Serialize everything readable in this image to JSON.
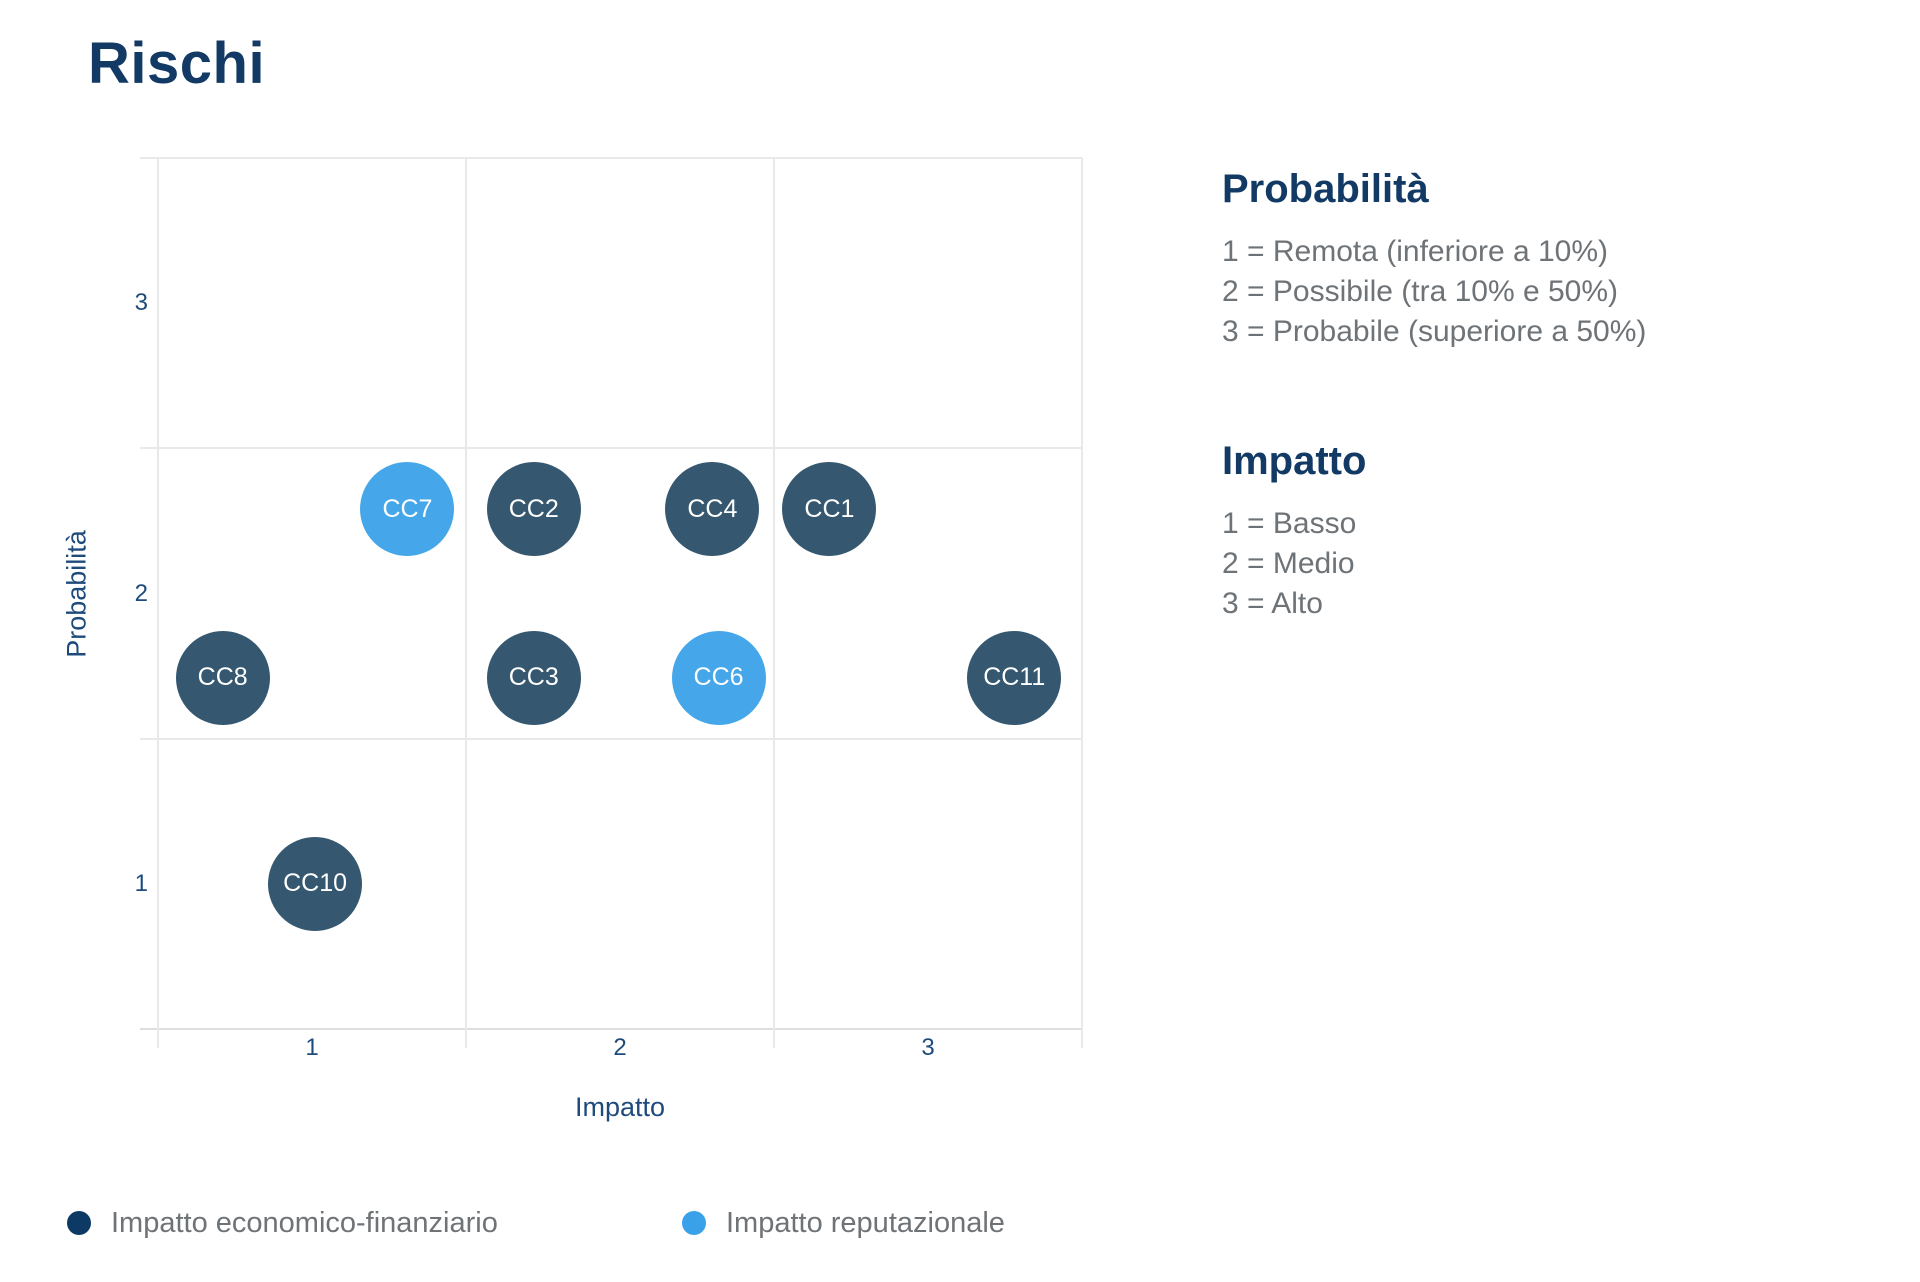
{
  "title": "Rischi",
  "chart_data": {
    "type": "scatter",
    "title": "Rischi",
    "xlabel": "Impatto",
    "ylabel": "Probabilità",
    "xlim": [
      0.5,
      3.5
    ],
    "ylim": [
      0.5,
      3.5
    ],
    "x_ticks": [
      1,
      2,
      3
    ],
    "y_ticks": [
      1,
      2,
      3
    ],
    "grid": true,
    "legend_position": "bottom",
    "series": [
      {
        "name": "Impatto economico-finanziario",
        "color": "#355870",
        "legend_color": "#0D3A64",
        "points": [
          {
            "label": "CC1",
            "x": 2.68,
            "y": 2.29
          },
          {
            "label": "CC2",
            "x": 1.72,
            "y": 2.29
          },
          {
            "label": "CC4",
            "x": 2.3,
            "y": 2.29
          },
          {
            "label": "CC8",
            "x": 0.71,
            "y": 1.71
          },
          {
            "label": "CC3",
            "x": 1.72,
            "y": 1.71
          },
          {
            "label": "CC11",
            "x": 3.28,
            "y": 1.71
          },
          {
            "label": "CC10",
            "x": 1.01,
            "y": 1.0
          }
        ]
      },
      {
        "name": "Impatto reputazionale",
        "color": "#45A7E9",
        "legend_color": "#38A1E7",
        "points": [
          {
            "label": "CC7",
            "x": 1.31,
            "y": 2.29
          },
          {
            "label": "CC6",
            "x": 2.32,
            "y": 1.71
          }
        ]
      }
    ]
  },
  "side_panel": {
    "probability": {
      "heading": "Probabilità",
      "lines": [
        "1 = Remota (inferiore a 10%)",
        "2 = Possibile (tra 10% e 50%)",
        "3 = Probabile (superiore a 50%)"
      ]
    },
    "impact": {
      "heading": "Impatto",
      "lines": [
        "1 = Basso",
        "2 = Medio",
        "3 = Alto"
      ]
    }
  },
  "colors": {
    "title_navy": "#123A64",
    "axis_navy": "#1E4B7B",
    "body_gray": "#6E7377",
    "grid_gray": "#E9E9E9",
    "bubble_dark": "#355870",
    "bubble_light": "#45A7E9",
    "legend_dark": "#0D3A64",
    "legend_light": "#38A1E7"
  }
}
